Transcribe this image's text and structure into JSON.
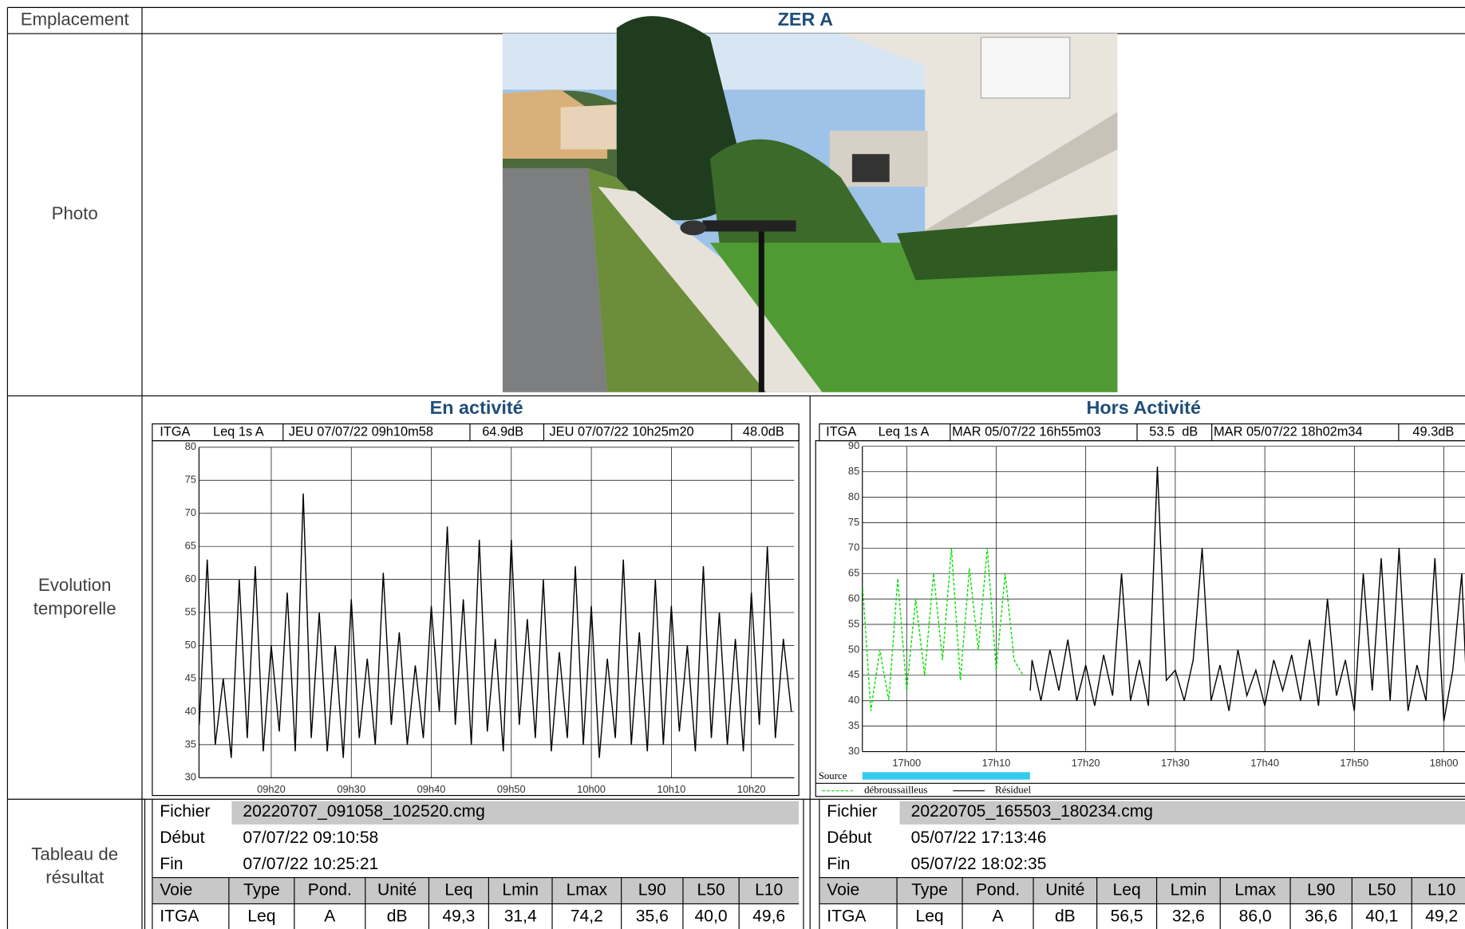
{
  "header": {
    "label": "Emplacement",
    "title": "ZER A"
  },
  "photo": {
    "label": "Photo"
  },
  "evolution": {
    "label_lines": [
      "Evolution",
      "temporelle"
    ],
    "charts": [
      {
        "type": "line",
        "title": "En activité",
        "channel": "ITGA",
        "index": "Leq 1s A",
        "cursor1_date": "JEU 07/07/22 09h10m58",
        "cursor1_value": "64.9dB",
        "cursor2_date": "JEU 07/07/22 10h25m20",
        "cursor2_value": "48.0dB",
        "xlim": [
          550.97,
          625.35
        ],
        "ylim": [
          30,
          80
        ],
        "xticks": [
          {
            "value": 560,
            "label": "09h20"
          },
          {
            "value": 570,
            "label": "09h30"
          },
          {
            "value": 580,
            "label": "09h40"
          },
          {
            "value": 590,
            "label": "09h50"
          },
          {
            "value": 600,
            "label": "10h00"
          },
          {
            "value": 610,
            "label": "10h10"
          },
          {
            "value": 620,
            "label": "10h20"
          }
        ],
        "yticks": [
          30,
          35,
          40,
          45,
          50,
          55,
          60,
          65,
          70,
          75,
          80
        ],
        "grid": true,
        "series": [
          {
            "color": "#000000",
            "x": [
              551,
              552,
              553,
              554,
              555,
              556,
              557,
              558,
              559,
              560,
              561,
              562,
              563,
              564,
              565,
              566,
              567,
              568,
              569,
              570,
              571,
              572,
              573,
              574,
              575,
              576,
              577,
              578,
              579,
              580,
              581,
              582,
              583,
              584,
              585,
              586,
              587,
              588,
              589,
              590,
              591,
              592,
              593,
              594,
              595,
              596,
              597,
              598,
              599,
              600,
              601,
              602,
              603,
              604,
              605,
              606,
              607,
              608,
              609,
              610,
              611,
              612,
              613,
              614,
              615,
              616,
              617,
              618,
              619,
              620,
              621,
              622,
              623,
              624,
              625
            ],
            "values": [
              38,
              63,
              35,
              45,
              33,
              60,
              36,
              62,
              34,
              50,
              37,
              58,
              34,
              73,
              36,
              55,
              34,
              50,
              33,
              57,
              36,
              48,
              35,
              61,
              38,
              52,
              35,
              47,
              36,
              56,
              40,
              68,
              38,
              57,
              35,
              66,
              37,
              51,
              34,
              66,
              38,
              54,
              36,
              60,
              34,
              49,
              36,
              62,
              35,
              56,
              33,
              48,
              36,
              63,
              35,
              52,
              34,
              60,
              35,
              56,
              37,
              50,
              34,
              62,
              36,
              55,
              35,
              51,
              34,
              58,
              38,
              65,
              36,
              51,
              40
            ]
          }
        ]
      },
      {
        "type": "line",
        "title": "Hors Activité",
        "channel": "ITGA",
        "index": "Leq 1s A",
        "cursor1_date": "MAR 05/07/22 16h55m03",
        "cursor1_value": "53.5",
        "cursor1_unit": "dB",
        "cursor1_color": "#00e000",
        "cursor2_date": "MAR 05/07/22 18h02m34",
        "cursor2_value": "49.3dB",
        "xlim": [
          1015.05,
          1082.57
        ],
        "ylim": [
          30,
          90
        ],
        "xticks": [
          {
            "value": 1020,
            "label": "17h00"
          },
          {
            "value": 1030,
            "label": "17h10"
          },
          {
            "value": 1040,
            "label": "17h20"
          },
          {
            "value": 1050,
            "label": "17h30"
          },
          {
            "value": 1060,
            "label": "17h40"
          },
          {
            "value": 1070,
            "label": "17h50"
          },
          {
            "value": 1080,
            "label": "18h00"
          }
        ],
        "yticks": [
          30,
          35,
          40,
          45,
          50,
          55,
          60,
          65,
          70,
          75,
          80,
          85,
          90
        ],
        "grid": true,
        "source_label": "Source",
        "source_color": "#33ccee",
        "source_range": [
          1015.05,
          1033.77
        ],
        "series": [
          {
            "name": "débroussailleus",
            "color": "#00e000",
            "dashed": true,
            "x": [
              1015.1,
              1016,
              1017,
              1018,
              1019,
              1020,
              1021,
              1022,
              1023,
              1024,
              1025,
              1026,
              1027,
              1028,
              1029,
              1030,
              1031,
              1032,
              1033
            ],
            "values": [
              62,
              38,
              50,
              40,
              64,
              42,
              60,
              45,
              65,
              48,
              70,
              44,
              66,
              50,
              70,
              46,
              65,
              48,
              45
            ]
          },
          {
            "name": "Résiduel",
            "color": "#000000",
            "dashed": false,
            "x": [
              1033.8,
              1034,
              1035,
              1036,
              1037,
              1038,
              1039,
              1040,
              1041,
              1042,
              1043,
              1044,
              1045,
              1046,
              1047,
              1048,
              1049,
              1050,
              1051,
              1052,
              1053,
              1054,
              1055,
              1056,
              1057,
              1058,
              1059,
              1060,
              1061,
              1062,
              1063,
              1064,
              1065,
              1066,
              1067,
              1068,
              1069,
              1070,
              1071,
              1072,
              1073,
              1074,
              1075,
              1076,
              1077,
              1078,
              1079,
              1080,
              1081,
              1082,
              1082.5
            ],
            "values": [
              42,
              48,
              40,
              50,
              42,
              52,
              40,
              47,
              39,
              49,
              41,
              65,
              40,
              48,
              39,
              86,
              44,
              46,
              40,
              48,
              70,
              40,
              47,
              38,
              50,
              41,
              46,
              39,
              48,
              42,
              49,
              40,
              52,
              39,
              60,
              41,
              48,
              38,
              65,
              42,
              68,
              40,
              70,
              38,
              47,
              40,
              68,
              36,
              46,
              65,
              44
            ]
          }
        ]
      }
    ]
  },
  "results": {
    "label_lines": [
      "Tableau de",
      "résultat"
    ],
    "tables": [
      {
        "file_label": "Fichier",
        "file": "20220707_091058_102520.cmg",
        "start_label": "Début",
        "start": "07/07/22 09:10:58",
        "end_label": "Fin",
        "end": "07/07/22 10:25:21",
        "columns": [
          "Voie",
          "Type",
          "Pond.",
          "Unité",
          "Leq",
          "Lmin",
          "Lmax",
          "L90",
          "L50",
          "L10"
        ],
        "rows": [
          [
            "ITGA",
            "Leq",
            "A",
            "dB",
            "49,3",
            "31,4",
            "74,2",
            "35,6",
            "40,0",
            "49,6"
          ]
        ]
      },
      {
        "file_label": "Fichier",
        "file": "20220705_165503_180234.cmg",
        "start_label": "Début",
        "start": "05/07/22 17:13:46",
        "end_label": "Fin",
        "end": "05/07/22 18:02:35",
        "columns": [
          "Voie",
          "Type",
          "Pond.",
          "Unité",
          "Leq",
          "Lmin",
          "Lmax",
          "L90",
          "L50",
          "L10"
        ],
        "rows": [
          [
            "ITGA",
            "Leq",
            "A",
            "dB",
            "56,5",
            "32,6",
            "86,0",
            "36,6",
            "40,1",
            "49,2"
          ]
        ]
      }
    ]
  }
}
